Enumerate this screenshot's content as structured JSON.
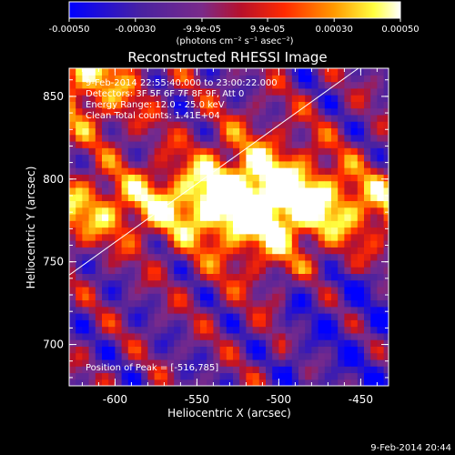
{
  "chart_data": {
    "type": "heatmap",
    "title": "Reconstructed RHESSI Image",
    "xlabel": "Heliocentric X (arcsec)",
    "ylabel": "Heliocentric Y (arcsec)",
    "xlim": [
      -628,
      -433
    ],
    "ylim": [
      675,
      867
    ],
    "x_ticks": [
      "-600",
      "-550",
      "-500",
      "-450"
    ],
    "x_tick_values": [
      -600,
      -550,
      -500,
      -450
    ],
    "y_ticks": [
      "700",
      "750",
      "800",
      "850"
    ],
    "y_tick_values": [
      700,
      750,
      800,
      850
    ],
    "colorbar": {
      "min": -0.0005,
      "max": 0.0005,
      "ticks_top": [
        "-0.00050",
        "-0.00030",
        "-9.9e-05",
        "9.9e-05",
        "0.00030",
        "0.00050"
      ],
      "tick_values": [
        -0.0005,
        -0.0003,
        -9.9e-05,
        9.9e-05,
        0.0003,
        0.0005
      ],
      "unit_label": "(photons cm⁻² s⁻¹ asec⁻²)",
      "stops": [
        "#0000ff",
        "#5a1f8c",
        "#7a2a8a",
        "#c0102a",
        "#ff3000",
        "#ff9a00",
        "#ffff40",
        "#ffffff"
      ]
    },
    "annotations": [
      "9-Feb-2014 22:55:40.000 to 23:00:22.000",
      "Detectors: 3F 5F 6F 7F 8F 9F, Att 0",
      "Energy Range: 12.0 - 25.0 keV",
      "Clean     Total counts: 1.41E+04"
    ],
    "peak_label": "Position of Peak = [-516,785]",
    "peak": [
      -516,
      785
    ],
    "limb_line": [
      [
        -628,
        742
      ],
      [
        -450,
        868
      ]
    ]
  },
  "footer_date": "9-Feb-2014 20:44"
}
